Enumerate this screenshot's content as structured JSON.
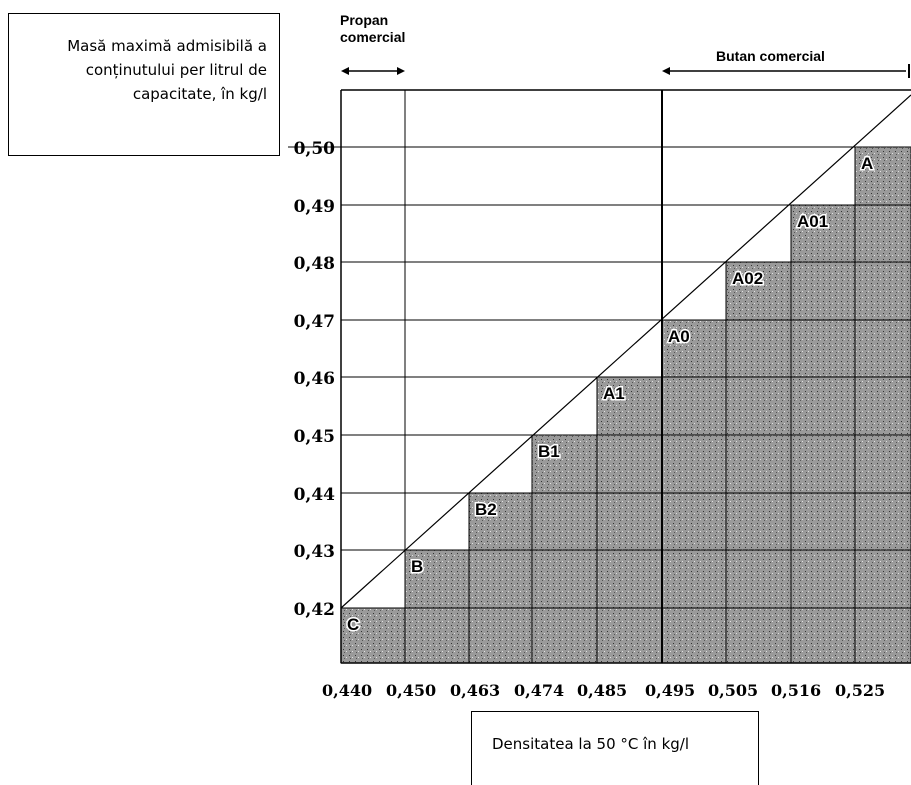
{
  "chart_data": {
    "type": "bar",
    "ylabel": "Masă maximă admisibilă a conținutului per litrul de capacitate, în kg/l",
    "xlabel": "Densitatea la 50 °C în kg/l",
    "x_ticks": [
      "0,440",
      "0,450",
      "0,463",
      "0,474",
      "0,485",
      "0,495",
      "0,505",
      "0,516",
      "0,525"
    ],
    "y_ticks": [
      "0,42",
      "0,43",
      "0,44",
      "0,45",
      "0,46",
      "0,47",
      "0,48",
      "0,49",
      "0,50"
    ],
    "ylim": [
      0.41,
      0.51
    ],
    "bars": [
      {
        "label": "C",
        "x_from": 0.44,
        "x_to": 0.45,
        "value": 0.42
      },
      {
        "label": "B",
        "x_from": 0.45,
        "x_to": 0.463,
        "value": 0.43
      },
      {
        "label": "B2",
        "x_from": 0.463,
        "x_to": 0.474,
        "value": 0.44
      },
      {
        "label": "B1",
        "x_from": 0.474,
        "x_to": 0.485,
        "value": 0.45
      },
      {
        "label": "A1",
        "x_from": 0.485,
        "x_to": 0.495,
        "value": 0.46
      },
      {
        "label": "A0",
        "x_from": 0.495,
        "x_to": 0.505,
        "value": 0.47
      },
      {
        "label": "A02",
        "x_from": 0.505,
        "x_to": 0.516,
        "value": 0.48
      },
      {
        "label": "A01",
        "x_from": 0.516,
        "x_to": 0.525,
        "value": 0.49
      },
      {
        "label": "A",
        "x_from": 0.525,
        "x_to": 0.535,
        "value": 0.5
      }
    ],
    "ranges": [
      {
        "name": "Propan comercial",
        "x_from": 0.44,
        "x_to": 0.45
      },
      {
        "name": "Butan comercial",
        "x_from": 0.49
      }
    ],
    "grid": true,
    "colors": {
      "bar_fill": "#9a9a9a",
      "line": "#000000"
    }
  }
}
